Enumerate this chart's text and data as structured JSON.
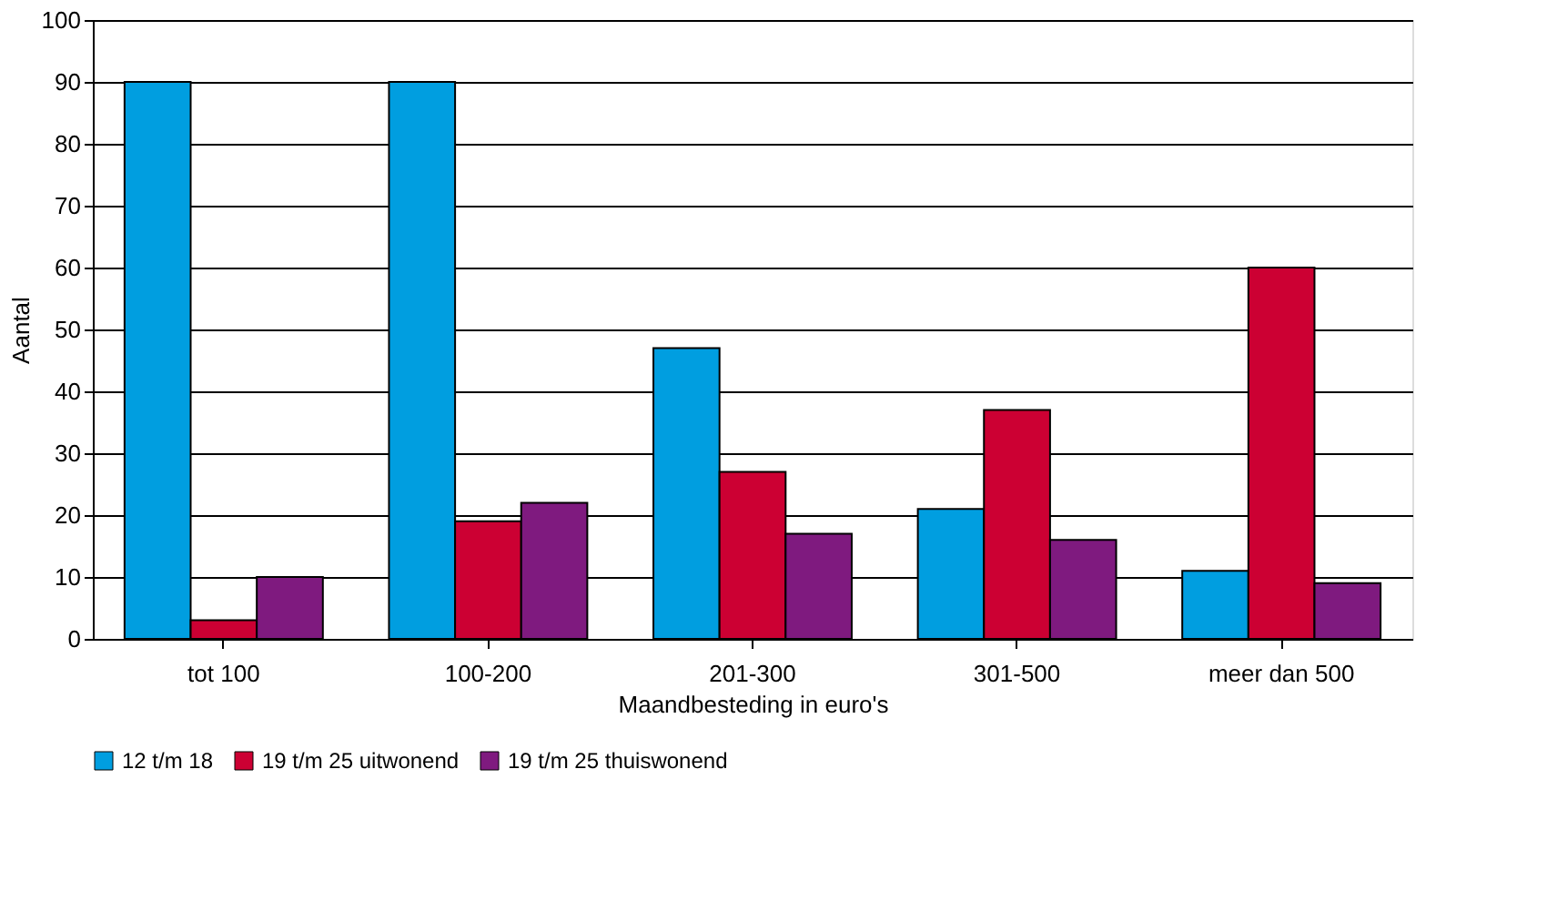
{
  "chart_data": {
    "type": "bar",
    "xlabel": "Maandbesteding in euro's",
    "ylabel": "Aantal",
    "categories": [
      "tot 100",
      "100-200",
      "201-300",
      "301-500",
      "meer dan 500"
    ],
    "series": [
      {
        "name": "12 t/m 18",
        "color": "#009ee0",
        "values": [
          90,
          90,
          47,
          21,
          11
        ]
      },
      {
        "name": "19 t/m 25 uitwonend",
        "color": "#cc0033",
        "values": [
          3,
          19,
          27,
          37,
          60
        ]
      },
      {
        "name": "19 t/m 25 thuiswonend",
        "color": "#7f1a7f",
        "values": [
          10,
          22,
          17,
          16,
          9
        ]
      }
    ],
    "ylim": [
      0,
      100
    ],
    "yticks": [
      0,
      10,
      20,
      30,
      40,
      50,
      60,
      70,
      80,
      90,
      100
    ],
    "grid": "y",
    "legend": "bottom"
  }
}
